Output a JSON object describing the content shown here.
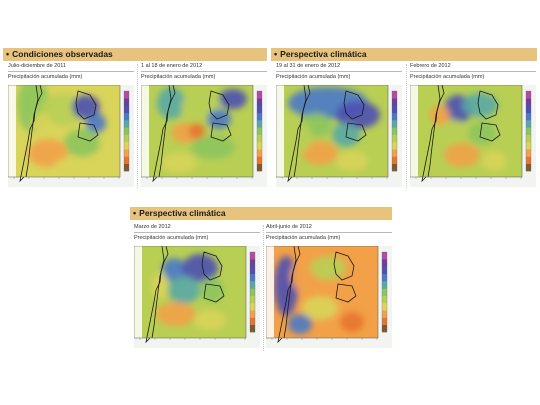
{
  "sections": {
    "observed": "Condiciones observadas",
    "outlook_top": "Perspectiva climática",
    "outlook_bottom": "Perspectiva climática"
  },
  "panels": [
    {
      "date": "Julio-diciembre de 2011",
      "subtitle": "Precipitación acumulada (mm)"
    },
    {
      "date": "1 al 18 de enero de 2012",
      "subtitle": "Precipitación acumulada (mm)"
    },
    {
      "date": "19 al 31 de enero de 2012",
      "subtitle": "Precipitación acumulada (mm)"
    },
    {
      "date": "Febrero de 2012",
      "subtitle": "Precipitación acumulada (mm)"
    },
    {
      "date": "Marzo de 2012",
      "subtitle": "Precipitación acumulada (mm)"
    },
    {
      "date": "Abril-junio de 2012",
      "subtitle": "Precipitación acumulada (mm)"
    }
  ],
  "colors": {
    "banner": "#e8c37d",
    "ocean": "#f2f4f1",
    "scale": [
      "#7d5a32",
      "#e6762b",
      "#f2a148",
      "#d9d45a",
      "#b8cf54",
      "#8cc55c",
      "#5aa9a5",
      "#4a79c6",
      "#4d4fb3",
      "#6b3f9c",
      "#b44aa6"
    ]
  }
}
